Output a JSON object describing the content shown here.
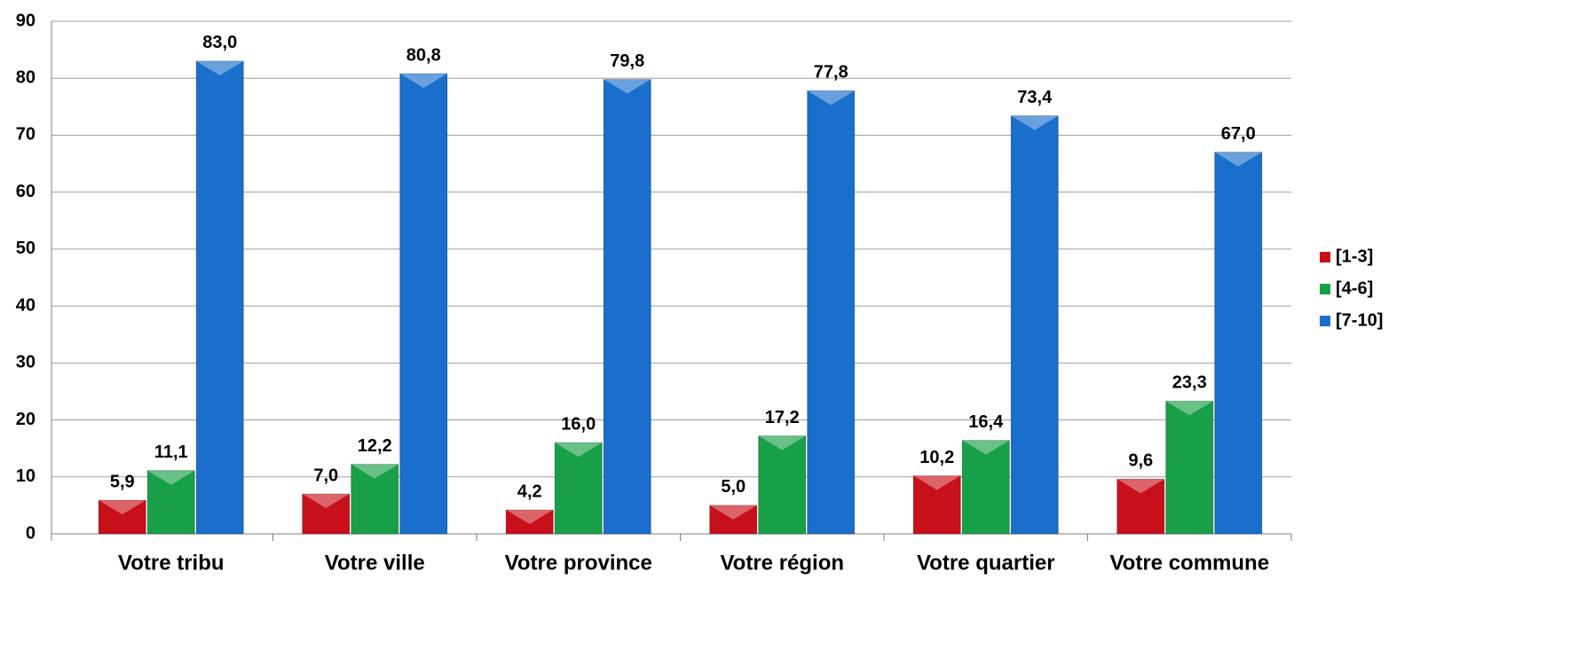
{
  "chart_data": {
    "type": "bar",
    "categories": [
      "Votre tribu",
      "Votre ville",
      "Votre province",
      "Votre région",
      "Votre quartier",
      "Votre commune"
    ],
    "series": [
      {
        "name": "[1-3]",
        "color": "#c8101a",
        "values": [
          5.9,
          7.0,
          4.2,
          5.0,
          10.2,
          9.6
        ],
        "value_labels": [
          "5,9",
          "7,0",
          "4,2",
          "5,0",
          "10,2",
          "9,6"
        ]
      },
      {
        "name": "[4-6]",
        "color": "#17a048",
        "values": [
          11.1,
          12.2,
          16.0,
          17.2,
          16.4,
          23.3
        ],
        "value_labels": [
          "11,1",
          "12,2",
          "16,0",
          "17,2",
          "16,4",
          "23,3"
        ]
      },
      {
        "name": "[7-10]",
        "color": "#1a6fcc",
        "values": [
          83.0,
          80.8,
          79.8,
          77.8,
          73.4,
          67.0
        ],
        "value_labels": [
          "83,0",
          "80,8",
          "79,8",
          "77,8",
          "73,4",
          "67,0"
        ]
      }
    ],
    "ylim": [
      0,
      90
    ],
    "yticks": [
      0,
      10,
      20,
      30,
      40,
      50,
      60,
      70,
      80,
      90
    ],
    "grid": true,
    "legend": "right"
  }
}
